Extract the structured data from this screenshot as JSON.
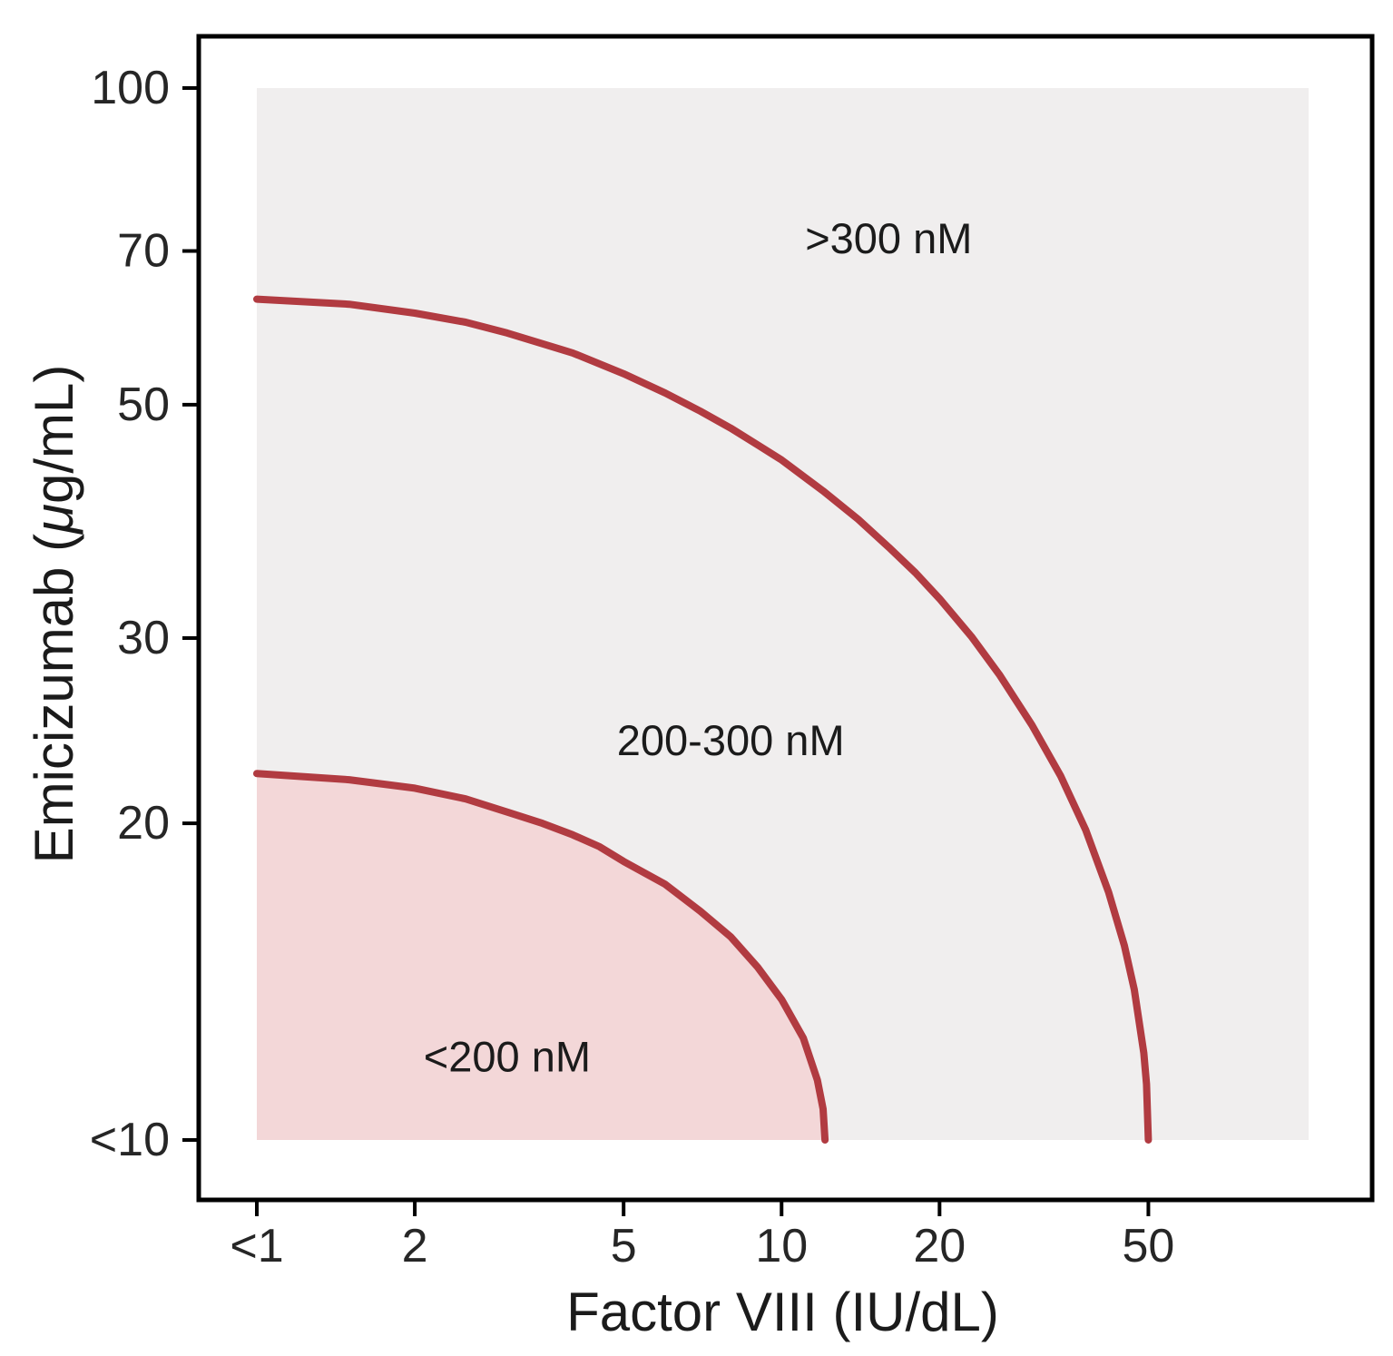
{
  "chart_data": {
    "type": "contour",
    "title": "",
    "xlabel": "Factor VIII (IU/dL)",
    "ylabel": "Emicizumab (μg/mL)",
    "x_scale": "log",
    "y_scale": "log",
    "x_domain": [
      1,
      101
    ],
    "y_domain": [
      10,
      100
    ],
    "grid": "off",
    "legend": "none",
    "x_ticks": [
      {
        "value": 1,
        "label": "<1"
      },
      {
        "value": 2,
        "label": "2"
      },
      {
        "value": 5,
        "label": "5"
      },
      {
        "value": 10,
        "label": "10"
      },
      {
        "value": 20,
        "label": "20"
      },
      {
        "value": 50,
        "label": "50"
      }
    ],
    "y_ticks": [
      {
        "value": 100,
        "label": "100"
      },
      {
        "value": 70,
        "label": "70"
      },
      {
        "value": 50,
        "label": "50"
      },
      {
        "value": 30,
        "label": "30"
      },
      {
        "value": 20,
        "label": "20"
      },
      {
        "value": 10,
        "label": "<10"
      }
    ],
    "regions": [
      {
        "name": "lt200",
        "label": "<200 nM",
        "label_pos": [
          3,
          12
        ]
      },
      {
        "name": "200to300",
        "label": "200-300 nM",
        "label_pos": [
          8,
          24
        ]
      },
      {
        "name": "gt300",
        "label": ">300 nM",
        "label_pos": [
          16,
          72
        ]
      }
    ],
    "contours": [
      {
        "level": "200 nM",
        "points": [
          [
            1,
            22.3
          ],
          [
            1.5,
            22.0
          ],
          [
            2,
            21.6
          ],
          [
            2.5,
            21.1
          ],
          [
            3,
            20.5
          ],
          [
            3.5,
            20.0
          ],
          [
            4,
            19.5
          ],
          [
            4.5,
            19.0
          ],
          [
            5,
            18.4
          ],
          [
            6,
            17.5
          ],
          [
            7,
            16.5
          ],
          [
            8,
            15.6
          ],
          [
            9,
            14.6
          ],
          [
            10,
            13.6
          ],
          [
            11,
            12.5
          ],
          [
            11.7,
            11.4
          ],
          [
            12.0,
            10.7
          ],
          [
            12.1,
            10
          ]
        ]
      },
      {
        "level": "300 nM",
        "points": [
          [
            1,
            63.0
          ],
          [
            1.5,
            62.3
          ],
          [
            2,
            61.1
          ],
          [
            2.5,
            59.9
          ],
          [
            3,
            58.5
          ],
          [
            4,
            56.0
          ],
          [
            5,
            53.5
          ],
          [
            6,
            51.3
          ],
          [
            7,
            49.3
          ],
          [
            8,
            47.5
          ],
          [
            9,
            45.8
          ],
          [
            10,
            44.3
          ],
          [
            12,
            41.4
          ],
          [
            14,
            38.9
          ],
          [
            16,
            36.6
          ],
          [
            18,
            34.6
          ],
          [
            20,
            32.7
          ],
          [
            23,
            30.1
          ],
          [
            26,
            27.7
          ],
          [
            30,
            24.8
          ],
          [
            34,
            22.2
          ],
          [
            38,
            19.7
          ],
          [
            42,
            17.2
          ],
          [
            45,
            15.3
          ],
          [
            47,
            13.9
          ],
          [
            49,
            12.1
          ],
          [
            49.6,
            11.3
          ],
          [
            50,
            10
          ]
        ]
      }
    ],
    "colors": {
      "contour_stroke": "#b13b41",
      "region_lt200_fill": "#f3d7d8",
      "panel_fill": "#f0eeee",
      "panel_border": "#000000",
      "text": "#1b1b1b",
      "tick_text": "#262626"
    }
  }
}
